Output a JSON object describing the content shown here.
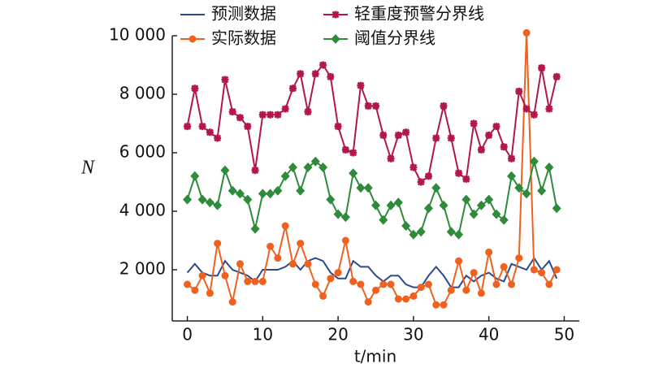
{
  "chart_data": {
    "type": "line",
    "x_label": "t/min",
    "y_label": "N",
    "x": [
      0,
      1,
      2,
      3,
      4,
      5,
      6,
      7,
      8,
      9,
      10,
      11,
      12,
      13,
      14,
      15,
      16,
      17,
      18,
      19,
      20,
      21,
      22,
      23,
      24,
      25,
      26,
      27,
      28,
      29,
      30,
      31,
      32,
      33,
      34,
      35,
      36,
      37,
      38,
      39,
      40,
      41,
      42,
      43,
      44,
      45,
      46,
      47,
      48,
      49
    ],
    "series": [
      {
        "name": "预测数据",
        "color": "#2b4a8c",
        "marker": null,
        "values": [
          1900,
          2200,
          1900,
          1800,
          1800,
          2300,
          2000,
          1900,
          1800,
          1600,
          2000,
          2000,
          2000,
          2100,
          2300,
          2000,
          2300,
          2400,
          2300,
          1900,
          1700,
          1700,
          2300,
          2100,
          2100,
          1800,
          1600,
          1800,
          1800,
          1500,
          1400,
          1400,
          1800,
          2100,
          1800,
          1400,
          1400,
          1800,
          1600,
          1800,
          1900,
          1700,
          1600,
          2200,
          2100,
          2000,
          2400,
          2000,
          2300,
          1700
        ]
      },
      {
        "name": "实际数据",
        "color": "#f0601e",
        "marker": "circle",
        "values": [
          1500,
          1300,
          1800,
          1200,
          2900,
          1800,
          900,
          2200,
          1600,
          1600,
          1600,
          2800,
          2400,
          3500,
          2200,
          2900,
          2200,
          1500,
          1100,
          1700,
          1900,
          3000,
          1600,
          1500,
          900,
          1300,
          1500,
          1500,
          1000,
          1000,
          1100,
          1400,
          1500,
          800,
          800,
          1300,
          2300,
          1300,
          1900,
          1200,
          2600,
          1500,
          2100,
          1500,
          2400,
          10100,
          2000,
          1900,
          1500,
          2000
        ]
      },
      {
        "name": "轻重度预警分界线",
        "color": "#b3164a",
        "marker": "x",
        "values": [
          6900,
          8200,
          6900,
          6700,
          6500,
          8500,
          7400,
          7200,
          6900,
          5400,
          7300,
          7300,
          7300,
          7500,
          8200,
          8700,
          7400,
          8700,
          9000,
          8600,
          6900,
          6100,
          6000,
          8300,
          7600,
          7600,
          6600,
          5800,
          6600,
          6700,
          5500,
          5000,
          5200,
          6500,
          7600,
          6500,
          5300,
          5100,
          7000,
          6100,
          6600,
          6900,
          6200,
          5800,
          8100,
          7500,
          7300,
          8900,
          7500,
          8600
        ]
      },
      {
        "name": "阈值分界线",
        "color": "#2e8b3a",
        "marker": "diamond",
        "values": [
          4400,
          5200,
          4400,
          4300,
          4200,
          5400,
          4700,
          4600,
          4400,
          3400,
          4600,
          4600,
          4700,
          5200,
          5500,
          4700,
          5500,
          5700,
          5500,
          4400,
          3900,
          3800,
          5300,
          4800,
          4800,
          4200,
          3700,
          4200,
          4300,
          3500,
          3200,
          3300,
          4100,
          4800,
          4200,
          3300,
          3200,
          4400,
          3900,
          4200,
          4400,
          3900,
          3700,
          5200,
          4800,
          4600,
          5700,
          4700,
          5500,
          4100
        ]
      }
    ],
    "xlim": [
      -2,
      52
    ],
    "xticks": [
      0,
      10,
      20,
      30,
      40,
      50
    ],
    "ylim": [
      250,
      10000
    ],
    "yticks": [
      {
        "value": 2000,
        "label": "2 000"
      },
      {
        "value": 4000,
        "label": "4 000"
      },
      {
        "value": 6000,
        "label": "6 000"
      },
      {
        "value": 8000,
        "label": "8 000"
      },
      {
        "value": 10000,
        "label": "10 000"
      }
    ],
    "legend": "top"
  }
}
